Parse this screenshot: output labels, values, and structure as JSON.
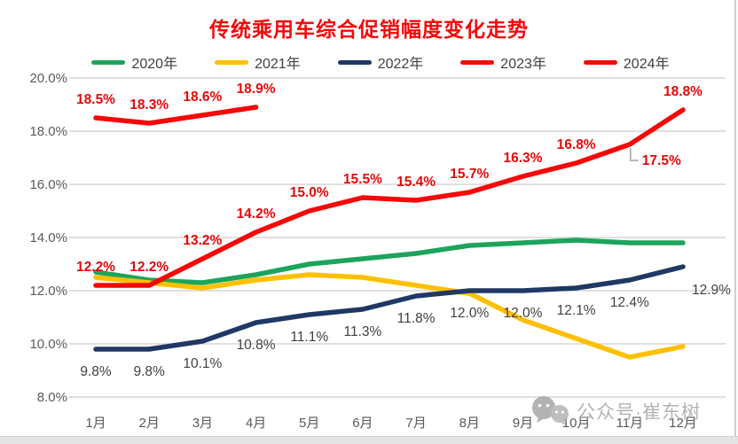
{
  "chart_data": {
    "type": "line",
    "title": "传统乘用车综合促销幅度变化走势",
    "categories": [
      "1月",
      "2月",
      "3月",
      "4月",
      "5月",
      "6月",
      "7月",
      "8月",
      "9月",
      "10月",
      "11月",
      "12月"
    ],
    "y_ticks": [
      "20.0%",
      "18.0%",
      "16.0%",
      "14.0%",
      "12.0%",
      "10.0%",
      "8.0%"
    ],
    "y_axis": {
      "min": 8,
      "max": 20,
      "step": 2,
      "unit": "%"
    },
    "grid": true,
    "legend_position": "top",
    "series": [
      {
        "name": "2020年",
        "color": "#1da45c",
        "data_labels": false,
        "values": [
          12.7,
          12.4,
          12.3,
          12.6,
          13.0,
          13.2,
          13.4,
          13.7,
          13.8,
          13.9,
          13.8,
          13.8
        ]
      },
      {
        "name": "2021年",
        "color": "#ffc000",
        "data_labels": false,
        "values": [
          12.5,
          12.3,
          12.1,
          12.4,
          12.6,
          12.5,
          12.2,
          11.9,
          10.9,
          10.2,
          9.5,
          9.9
        ]
      },
      {
        "name": "2022年",
        "color": "#1f3864",
        "data_labels": true,
        "label_position": "below",
        "label_color": "#404040",
        "label_bold": false,
        "values": [
          9.8,
          9.8,
          10.1,
          10.8,
          11.1,
          11.3,
          11.8,
          12.0,
          12.0,
          12.1,
          12.4,
          12.9
        ],
        "label_overrides": {
          "11": {
            "dx": 32,
            "dy": 31
          }
        }
      },
      {
        "name": "2023年",
        "color": "#f50808",
        "data_labels": true,
        "label_position": "above",
        "label_color": "#e60808",
        "label_bold": true,
        "values": [
          12.2,
          12.2,
          13.2,
          14.2,
          15.0,
          15.5,
          15.4,
          15.7,
          16.3,
          16.8,
          17.5,
          18.8
        ],
        "label_overrides": {
          "10": {
            "dx": 14,
            "dy": 23,
            "anchor": "start",
            "leader": true
          }
        }
      },
      {
        "name": "2024年",
        "color": "#f50808",
        "data_labels": true,
        "label_position": "above",
        "label_color": "#e60808",
        "label_bold": true,
        "values": [
          18.5,
          18.3,
          18.6,
          18.9
        ]
      }
    ]
  },
  "watermark": {
    "icon": "wechat-icon",
    "text": "公众号·崔东树"
  }
}
